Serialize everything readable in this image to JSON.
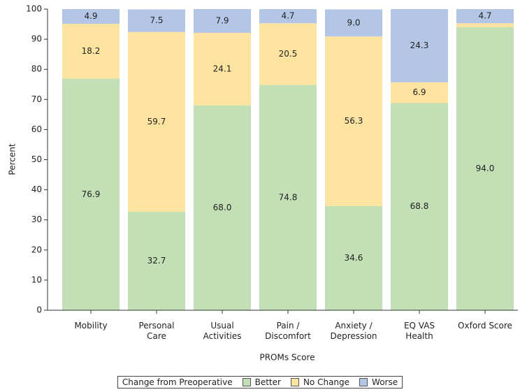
{
  "chart_data": {
    "type": "stacked_bar",
    "x_label": "PROMs Score",
    "y_label": "Percent",
    "legend_title": "Change from Preoperative",
    "legend": "bottom",
    "categories": [
      "Mobility",
      "Personal Care",
      "Usual Activities",
      "Pain / Discomfort",
      "Anxiety / Depression",
      "EQ VAS Health",
      "Oxford Score"
    ],
    "series": [
      {
        "name": "Better",
        "color": "#c2dfb6",
        "values": [
          76.9,
          32.7,
          68.0,
          74.8,
          34.6,
          68.8,
          94.0
        ],
        "value_labels": [
          "76.9",
          "32.7",
          "68.0",
          "74.8",
          "34.6",
          "68.8",
          "94.0"
        ]
      },
      {
        "name": "No Change",
        "color": "#fde3a0",
        "values": [
          18.2,
          59.7,
          24.1,
          20.5,
          56.3,
          6.9,
          1.3
        ],
        "value_labels": [
          "18.2",
          "59.7",
          "24.1",
          "20.5",
          "56.3",
          "6.9",
          null
        ]
      },
      {
        "name": "Worse",
        "color": "#b4c6e6",
        "values": [
          4.9,
          7.5,
          7.9,
          4.7,
          9.0,
          24.3,
          4.7
        ],
        "value_labels": [
          "4.9",
          "7.5",
          "7.9",
          "4.7",
          "9.0",
          "24.3",
          "4.7"
        ]
      }
    ],
    "ylim": [
      0,
      100
    ],
    "yticks": [
      0,
      10,
      20,
      30,
      40,
      50,
      60,
      70,
      80,
      90,
      100
    ]
  }
}
